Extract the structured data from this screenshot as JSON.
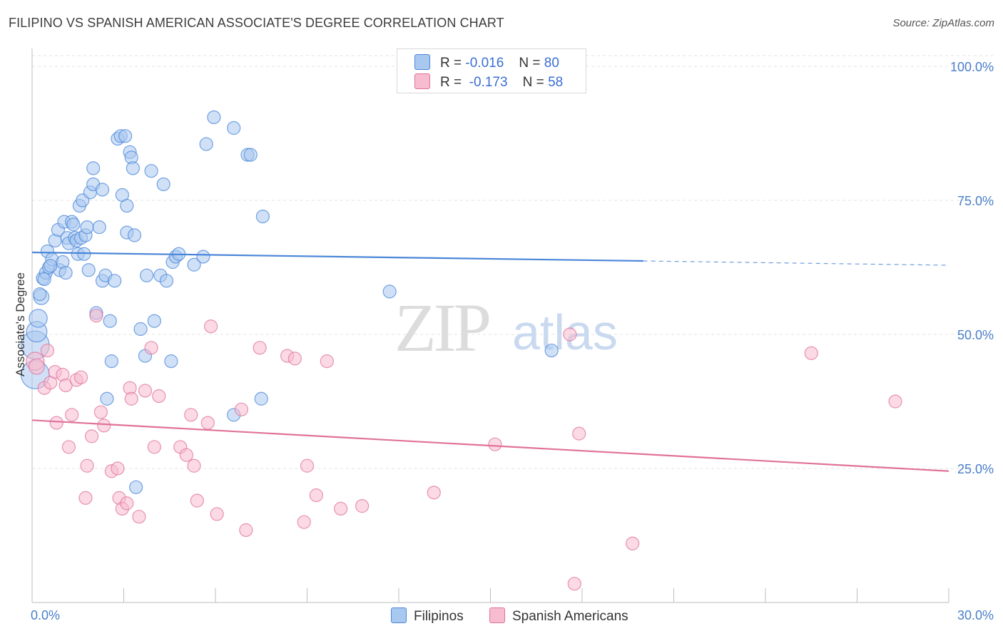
{
  "title": "FILIPINO VS SPANISH AMERICAN ASSOCIATE'S DEGREE CORRELATION CHART",
  "source": "Source: ZipAtlas.com",
  "watermark": {
    "zip": "ZIP",
    "atlas": "atlas"
  },
  "legend": {
    "rows": [
      {
        "r_label": "R =",
        "r_value": "-0.016",
        "n_label": "N =",
        "n_value": "80",
        "color": "#a9c8f0"
      },
      {
        "r_label": "R =",
        "r_value": "-0.173",
        "n_label": "N =",
        "n_value": "58",
        "color": "#f7bcd0"
      }
    ]
  },
  "bottom_legend": [
    {
      "label": "Filipinos",
      "color": "#a9c8f0"
    },
    {
      "label": "Spanish Americans",
      "color": "#f7bcd0"
    }
  ],
  "chart_data": {
    "type": "scatter",
    "title": "FILIPINO VS SPANISH AMERICAN ASSOCIATE'S DEGREE CORRELATION CHART",
    "xlabel": "",
    "ylabel": "Associate's Degree",
    "xlim": [
      0,
      30
    ],
    "ylim": [
      0,
      102
    ],
    "x_tick_labels": [
      {
        "v": 0,
        "label": "0.0%"
      },
      {
        "v": 30,
        "label": "30.0%"
      }
    ],
    "y_tick_labels": [
      {
        "v": 25,
        "label": "25.0%"
      },
      {
        "v": 50,
        "label": "50.0%"
      },
      {
        "v": 75,
        "label": "75.0%"
      },
      {
        "v": 100,
        "label": "100.0%"
      }
    ],
    "grid": true,
    "series": [
      {
        "name": "Filipinos",
        "color": "#4a86d8",
        "fill": "#a9c8f0",
        "trend": {
          "x0": 0,
          "y0": 65.3,
          "x1": 20,
          "y1": 63.7,
          "dash_to_x": 30,
          "dash_to_y": 62.9
        },
        "points": [
          [
            0.1,
            48,
            22
          ],
          [
            0.1,
            42.5,
            22
          ],
          [
            0.15,
            50.5,
            16
          ],
          [
            0.2,
            53,
            14
          ],
          [
            0.3,
            57,
            12
          ],
          [
            0.35,
            60.5,
            10
          ],
          [
            0.45,
            61.5,
            10
          ],
          [
            0.5,
            65.5,
            10
          ],
          [
            0.55,
            62.5,
            10
          ],
          [
            0.65,
            64,
            10
          ],
          [
            0.75,
            67.5,
            10
          ],
          [
            0.85,
            69.5,
            10
          ],
          [
            0.9,
            62,
            10
          ],
          [
            1.0,
            63.5,
            10
          ],
          [
            1.05,
            71,
            10
          ],
          [
            1.1,
            61.5,
            10
          ],
          [
            1.15,
            68,
            10
          ],
          [
            1.2,
            67,
            10
          ],
          [
            1.3,
            71,
            10
          ],
          [
            1.35,
            70.5,
            10
          ],
          [
            1.4,
            68,
            10
          ],
          [
            1.45,
            67.5,
            10
          ],
          [
            1.5,
            65,
            10
          ],
          [
            1.55,
            74,
            10
          ],
          [
            1.6,
            68,
            10
          ],
          [
            1.65,
            75,
            10
          ],
          [
            1.7,
            65,
            10
          ],
          [
            1.75,
            68.5,
            10
          ],
          [
            1.8,
            70,
            10
          ],
          [
            1.85,
            62,
            10
          ],
          [
            1.9,
            76.5,
            10
          ],
          [
            2.0,
            78,
            10
          ],
          [
            2.0,
            81,
            10
          ],
          [
            2.1,
            54,
            10
          ],
          [
            2.2,
            70,
            10
          ],
          [
            2.3,
            77,
            10
          ],
          [
            2.3,
            60,
            10
          ],
          [
            2.4,
            61,
            10
          ],
          [
            2.45,
            38,
            10
          ],
          [
            2.55,
            52.5,
            10
          ],
          [
            2.6,
            45,
            10
          ],
          [
            2.7,
            60,
            10
          ],
          [
            2.8,
            86.5,
            10
          ],
          [
            2.9,
            87,
            10
          ],
          [
            2.95,
            76,
            10
          ],
          [
            3.05,
            87,
            10
          ],
          [
            3.1,
            74,
            10
          ],
          [
            3.1,
            69,
            10
          ],
          [
            3.2,
            84,
            10
          ],
          [
            3.25,
            83,
            10
          ],
          [
            3.3,
            81,
            10
          ],
          [
            3.35,
            68.5,
            10
          ],
          [
            3.4,
            21.5,
            10
          ],
          [
            3.55,
            51,
            10
          ],
          [
            3.7,
            46,
            10
          ],
          [
            3.75,
            61,
            10
          ],
          [
            3.9,
            80.5,
            10
          ],
          [
            4.0,
            52.5,
            10
          ],
          [
            4.2,
            61,
            10
          ],
          [
            4.3,
            78,
            10
          ],
          [
            4.4,
            60,
            10
          ],
          [
            4.55,
            45,
            10
          ],
          [
            4.6,
            63.5,
            10
          ],
          [
            4.7,
            64.5,
            10
          ],
          [
            4.8,
            65,
            10
          ],
          [
            5.3,
            63,
            10
          ],
          [
            5.6,
            64.5,
            10
          ],
          [
            5.7,
            85.5,
            10
          ],
          [
            5.95,
            90.5,
            10
          ],
          [
            6.6,
            88.5,
            10
          ],
          [
            6.6,
            35,
            10
          ],
          [
            7.05,
            83.5,
            10
          ],
          [
            7.15,
            83.5,
            10
          ],
          [
            7.5,
            38,
            10
          ],
          [
            7.55,
            72,
            10
          ],
          [
            11.7,
            58,
            10
          ],
          [
            17.0,
            47,
            10
          ],
          [
            0.25,
            57.5,
            10
          ],
          [
            0.4,
            60.3,
            10
          ],
          [
            0.6,
            62.8,
            10
          ]
        ]
      },
      {
        "name": "Spanish Americans",
        "color": "#e0729a",
        "fill": "#f7bcd0",
        "trend": {
          "x0": 0,
          "y0": 34,
          "x1": 30,
          "y1": 24.5
        },
        "points": [
          [
            0.1,
            45,
            14
          ],
          [
            0.15,
            44,
            12
          ],
          [
            0.4,
            40,
            10
          ],
          [
            0.5,
            47,
            10
          ],
          [
            0.6,
            41,
            10
          ],
          [
            0.75,
            43,
            10
          ],
          [
            0.8,
            33.5,
            10
          ],
          [
            1.0,
            42.5,
            10
          ],
          [
            1.1,
            40.5,
            10
          ],
          [
            1.2,
            29,
            10
          ],
          [
            1.3,
            35,
            10
          ],
          [
            1.45,
            41.5,
            10
          ],
          [
            1.6,
            42,
            10
          ],
          [
            1.75,
            19.5,
            10
          ],
          [
            1.8,
            25.5,
            10
          ],
          [
            1.95,
            31,
            10
          ],
          [
            2.1,
            53.5,
            10
          ],
          [
            2.25,
            35.5,
            10
          ],
          [
            2.35,
            33,
            10
          ],
          [
            2.6,
            24.5,
            10
          ],
          [
            2.8,
            25,
            10
          ],
          [
            2.85,
            19.5,
            10
          ],
          [
            2.95,
            17.5,
            10
          ],
          [
            3.1,
            18.5,
            10
          ],
          [
            3.2,
            40,
            10
          ],
          [
            3.25,
            38,
            10
          ],
          [
            3.5,
            16,
            10
          ],
          [
            3.7,
            39.5,
            10
          ],
          [
            3.9,
            47.5,
            10
          ],
          [
            4.0,
            29,
            10
          ],
          [
            4.15,
            38.5,
            10
          ],
          [
            4.85,
            29,
            10
          ],
          [
            5.05,
            27.5,
            10
          ],
          [
            5.2,
            35,
            10
          ],
          [
            5.3,
            25.5,
            10
          ],
          [
            5.4,
            19,
            10
          ],
          [
            5.75,
            33.5,
            10
          ],
          [
            5.85,
            51.5,
            10
          ],
          [
            6.05,
            16.5,
            10
          ],
          [
            6.85,
            36,
            10
          ],
          [
            7.0,
            13.5,
            10
          ],
          [
            7.45,
            47.5,
            10
          ],
          [
            8.35,
            46,
            10
          ],
          [
            8.6,
            45.5,
            10
          ],
          [
            8.9,
            15,
            10
          ],
          [
            9.0,
            25.5,
            10
          ],
          [
            9.3,
            20,
            10
          ],
          [
            9.65,
            45,
            10
          ],
          [
            10.1,
            17.5,
            10
          ],
          [
            10.8,
            18,
            10
          ],
          [
            13.15,
            20.5,
            10
          ],
          [
            15.15,
            29.5,
            10
          ],
          [
            17.75,
            3.5,
            10
          ],
          [
            17.6,
            50,
            10
          ],
          [
            17.9,
            31.5,
            10
          ],
          [
            19.65,
            11,
            10
          ],
          [
            25.5,
            46.5,
            10
          ],
          [
            28.25,
            37.5,
            10
          ]
        ]
      }
    ]
  }
}
